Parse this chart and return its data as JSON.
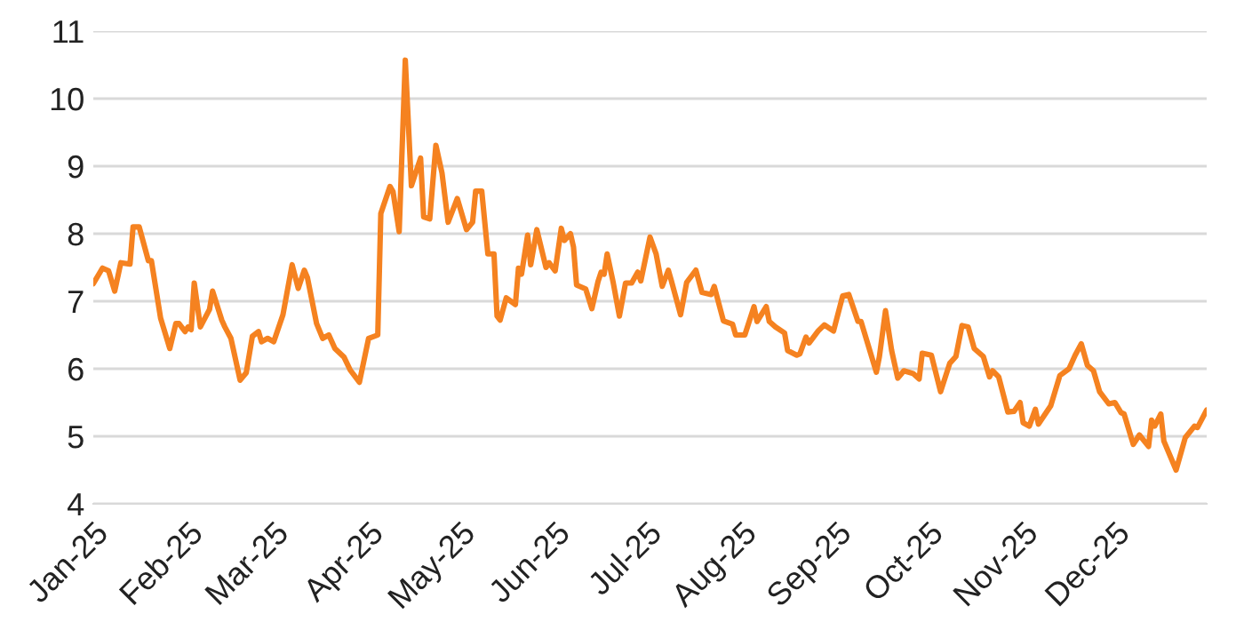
{
  "chart_data": {
    "type": "line",
    "x": [
      "2025-01-01",
      "2025-01-04",
      "2025-01-06",
      "2025-01-08",
      "2025-01-10",
      "2025-01-13",
      "2025-01-14",
      "2025-01-16",
      "2025-01-19",
      "2025-01-20",
      "2025-01-23",
      "2025-01-24",
      "2025-01-26",
      "2025-01-28",
      "2025-01-29",
      "2025-01-31",
      "2025-02-01",
      "2025-02-02",
      "2025-02-03",
      "2025-02-05",
      "2025-02-08",
      "2025-02-09",
      "2025-02-12",
      "2025-02-13",
      "2025-02-15",
      "2025-02-18",
      "2025-02-20",
      "2025-02-22",
      "2025-02-24",
      "2025-02-25",
      "2025-02-27",
      "2025-03-01",
      "2025-03-04",
      "2025-03-07",
      "2025-03-09",
      "2025-03-11",
      "2025-03-12",
      "2025-03-15",
      "2025-03-17",
      "2025-03-19",
      "2025-03-21",
      "2025-03-24",
      "2025-03-26",
      "2025-03-29",
      "2025-04-01",
      "2025-04-04",
      "2025-04-05",
      "2025-04-08",
      "2025-04-09",
      "2025-04-11",
      "2025-04-13",
      "2025-04-15",
      "2025-04-18",
      "2025-04-19",
      "2025-04-21",
      "2025-04-23",
      "2025-04-25",
      "2025-04-27",
      "2025-04-30",
      "2025-05-03",
      "2025-05-05",
      "2025-05-06",
      "2025-05-08",
      "2025-05-10",
      "2025-05-12",
      "2025-05-13",
      "2025-05-14",
      "2025-05-16",
      "2025-05-19",
      "2025-05-20",
      "2025-05-21",
      "2025-05-23",
      "2025-05-24",
      "2025-05-26",
      "2025-05-29",
      "2025-05-30",
      "2025-06-01",
      "2025-06-03",
      "2025-06-04",
      "2025-06-06",
      "2025-06-07",
      "2025-06-08",
      "2025-06-11",
      "2025-06-13",
      "2025-06-15",
      "2025-06-16",
      "2025-06-17",
      "2025-06-18",
      "2025-06-20",
      "2025-06-22",
      "2025-06-24",
      "2025-06-26",
      "2025-06-28",
      "2025-06-29",
      "2025-07-02",
      "2025-07-04",
      "2025-07-06",
      "2025-07-08",
      "2025-07-09",
      "2025-07-12",
      "2025-07-14",
      "2025-07-17",
      "2025-07-19",
      "2025-07-22",
      "2025-07-23",
      "2025-07-26",
      "2025-07-29",
      "2025-07-30",
      "2025-08-02",
      "2025-08-05",
      "2025-08-06",
      "2025-08-09",
      "2025-08-10",
      "2025-08-12",
      "2025-08-15",
      "2025-08-16",
      "2025-08-19",
      "2025-08-20",
      "2025-08-22",
      "2025-08-23",
      "2025-08-26",
      "2025-08-28",
      "2025-08-31",
      "2025-09-03",
      "2025-09-05",
      "2025-09-08",
      "2025-09-09",
      "2025-09-14",
      "2025-09-15",
      "2025-09-17",
      "2025-09-19",
      "2025-09-21",
      "2025-09-23",
      "2025-09-26",
      "2025-09-28",
      "2025-09-29",
      "2025-10-02",
      "2025-10-05",
      "2025-10-08",
      "2025-10-10",
      "2025-10-12",
      "2025-10-14",
      "2025-10-16",
      "2025-10-19",
      "2025-10-21",
      "2025-10-22",
      "2025-10-24",
      "2025-10-27",
      "2025-10-29",
      "2025-10-31",
      "2025-11-01",
      "2025-11-03",
      "2025-11-05",
      "2025-11-06",
      "2025-11-10",
      "2025-11-13",
      "2025-11-16",
      "2025-11-18",
      "2025-11-20",
      "2025-11-22",
      "2025-11-24",
      "2025-11-26",
      "2025-11-29",
      "2025-12-01",
      "2025-12-03",
      "2025-12-04",
      "2025-12-07",
      "2025-12-09",
      "2025-12-12",
      "2025-12-13",
      "2025-12-14",
      "2025-12-16",
      "2025-12-17",
      "2025-12-21",
      "2025-12-24",
      "2025-12-27",
      "2025-12-28",
      "2025-12-31"
    ],
    "series": [
      {
        "color": "#f58220",
        "values": [
          7.26,
          7.49,
          7.45,
          7.15,
          7.57,
          7.55,
          8.1,
          8.1,
          7.6,
          7.6,
          6.75,
          6.6,
          6.3,
          6.67,
          6.67,
          6.55,
          6.62,
          6.58,
          7.27,
          6.62,
          6.88,
          7.15,
          6.72,
          6.62,
          6.45,
          5.83,
          5.94,
          6.48,
          6.55,
          6.4,
          6.45,
          6.4,
          6.8,
          7.54,
          7.19,
          7.46,
          7.35,
          6.67,
          6.45,
          6.5,
          6.3,
          6.17,
          5.98,
          5.8,
          6.45,
          6.5,
          8.3,
          8.7,
          8.62,
          8.03,
          10.57,
          8.71,
          9.12,
          8.25,
          8.22,
          9.31,
          8.9,
          8.17,
          8.52,
          8.06,
          8.17,
          8.63,
          8.63,
          7.7,
          7.7,
          6.78,
          6.72,
          7.05,
          6.95,
          7.49,
          7.4,
          7.98,
          7.54,
          8.06,
          7.5,
          7.57,
          7.45,
          8.08,
          7.9,
          8.0,
          7.8,
          7.24,
          7.18,
          6.89,
          7.29,
          7.43,
          7.4,
          7.7,
          7.27,
          6.78,
          7.27,
          7.27,
          7.43,
          7.3,
          7.95,
          7.7,
          7.22,
          7.46,
          7.3,
          6.8,
          7.28,
          7.46,
          7.13,
          7.1,
          7.22,
          6.71,
          6.66,
          6.5,
          6.5,
          6.92,
          6.7,
          6.92,
          6.7,
          6.62,
          6.53,
          6.27,
          6.2,
          6.22,
          6.47,
          6.38,
          6.56,
          6.65,
          6.56,
          7.08,
          7.1,
          6.7,
          6.7,
          5.95,
          6.18,
          6.86,
          6.27,
          5.86,
          5.97,
          5.93,
          5.85,
          6.23,
          6.2,
          5.66,
          6.08,
          6.18,
          6.64,
          6.62,
          6.3,
          6.18,
          5.88,
          5.97,
          5.88,
          5.36,
          5.37,
          5.5,
          5.2,
          5.15,
          5.4,
          5.18,
          5.45,
          5.9,
          6.0,
          6.2,
          6.37,
          6.05,
          5.97,
          5.66,
          5.48,
          5.5,
          5.35,
          5.33,
          4.88,
          5.02,
          4.85,
          5.24,
          5.15,
          5.33,
          4.93,
          4.5,
          4.98,
          5.15,
          5.13,
          5.39
        ]
      }
    ],
    "xlim": [
      "2025-01-01",
      "2025-12-31"
    ],
    "xticks": [
      {
        "value": "2025-01-01",
        "label": "Jan-25"
      },
      {
        "value": "2025-02-01",
        "label": "Feb-25"
      },
      {
        "value": "2025-03-01",
        "label": "Mar-25"
      },
      {
        "value": "2025-04-01",
        "label": "Apr-25"
      },
      {
        "value": "2025-05-01",
        "label": "May-25"
      },
      {
        "value": "2025-06-01",
        "label": "Jun-25"
      },
      {
        "value": "2025-07-01",
        "label": "Jul-25"
      },
      {
        "value": "2025-08-01",
        "label": "Aug-25"
      },
      {
        "value": "2025-09-01",
        "label": "Sep-25"
      },
      {
        "value": "2025-10-01",
        "label": "Oct-25"
      },
      {
        "value": "2025-11-01",
        "label": "Nov-25"
      },
      {
        "value": "2025-12-01",
        "label": "Dec-25"
      }
    ],
    "ylim": [
      4,
      11
    ],
    "yticks": [
      4,
      5,
      6,
      7,
      8,
      9,
      10,
      11
    ],
    "grid": "y",
    "marker": "none",
    "line_style": "solid"
  }
}
